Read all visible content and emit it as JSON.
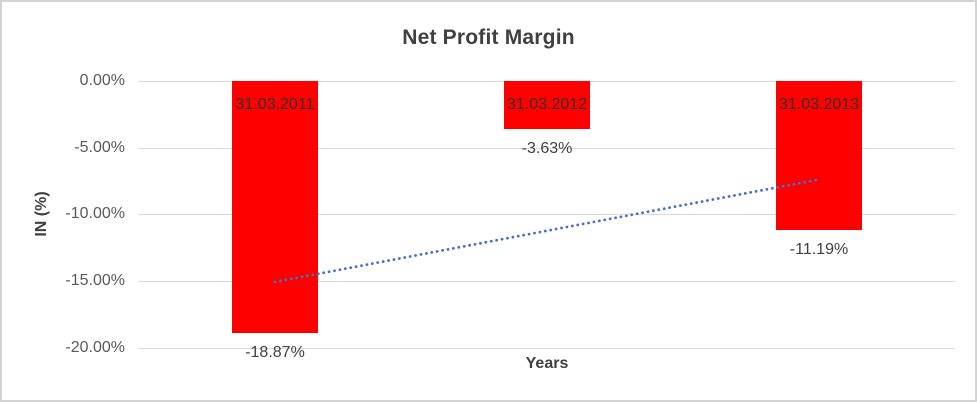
{
  "chart": {
    "title": "Net Profit Margin",
    "y_axis_title": "IN (%)",
    "x_axis_title": "Years",
    "y_ticks": [
      "0.00%",
      "-5.00%",
      "-10.00%",
      "-15.00%",
      "-20.00%"
    ]
  },
  "chart_data": {
    "type": "bar",
    "title": "Net Profit Margin",
    "xlabel": "Years",
    "ylabel": "IN (%)",
    "categories": [
      "31.03.2011",
      "31.03.2012",
      "31.03.2013"
    ],
    "values": [
      -18.87,
      -3.63,
      -11.19
    ],
    "value_labels": [
      "-18.87%",
      "-3.63%",
      "-11.19%"
    ],
    "ylim": [
      -20,
      0
    ],
    "y_tick_step": 5,
    "grid": true,
    "legend": false,
    "bar_color": "#ff0000",
    "category_labels_inside_bars": true,
    "trendline": {
      "style": "dotted",
      "color": "#4472c4",
      "start_value": -15.07,
      "end_value": -7.39
    }
  },
  "colors": {
    "bar": "#ff0000",
    "trendline": "#4472c4",
    "gridline": "#d9d9d9",
    "title_text": "#404040",
    "tick_text": "#595959",
    "label_text": "#404040",
    "category_text": "#333333",
    "chart_border": "#d3d3d3",
    "background": "#ffffff"
  }
}
